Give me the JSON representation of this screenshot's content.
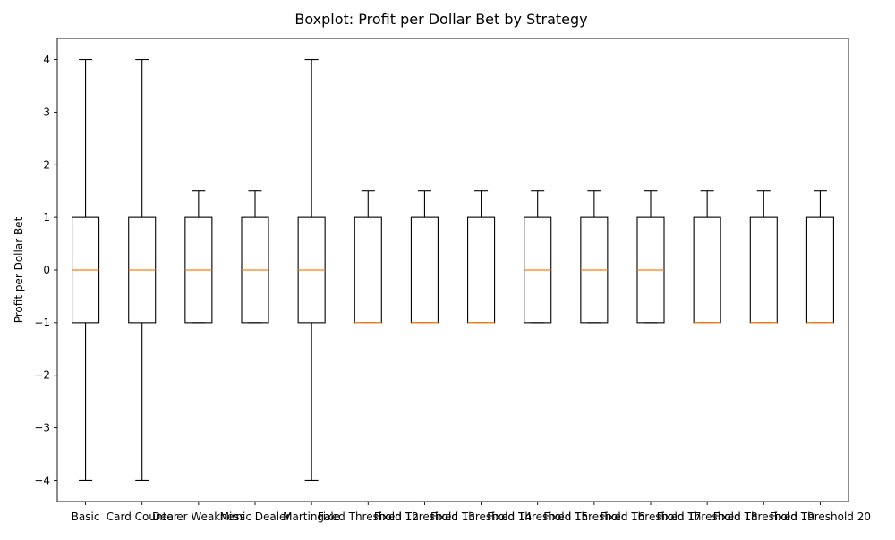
{
  "chart_data": {
    "type": "boxplot",
    "title": "Boxplot: Profit per Dollar Bet by Strategy",
    "xlabel": "",
    "ylabel": "Profit per Dollar Bet",
    "ylim": [
      -4.4,
      4.4
    ],
    "yticks": [
      -4,
      -3,
      -2,
      -1,
      0,
      1,
      2,
      3,
      4
    ],
    "ytick_labels": [
      "−4",
      "−3",
      "−2",
      "−1",
      "0",
      "1",
      "2",
      "3",
      "4"
    ],
    "grid": false,
    "categories": [
      "Basic",
      "Card Counter",
      "Dealer Weakness",
      "Mimic Dealer",
      "Martingale",
      "Fixed Threshold 12",
      "Fixed Threshold 13",
      "Fixed Threshold 14",
      "Fixed Threshold 15",
      "Fixed Threshold 16",
      "Fixed Threshold 17",
      "Fixed Threshold 18",
      "Fixed Threshold 19",
      "Fixed Threshold 20"
    ],
    "boxes": [
      {
        "whisker_low": -4,
        "q1": -1,
        "median": 0,
        "q3": 1,
        "whisker_high": 4
      },
      {
        "whisker_low": -4,
        "q1": -1,
        "median": 0,
        "q3": 1,
        "whisker_high": 4
      },
      {
        "whisker_low": -1,
        "q1": -1,
        "median": 0,
        "q3": 1,
        "whisker_high": 1.5
      },
      {
        "whisker_low": -1,
        "q1": -1,
        "median": 0,
        "q3": 1,
        "whisker_high": 1.5
      },
      {
        "whisker_low": -4,
        "q1": -1,
        "median": 0,
        "q3": 1,
        "whisker_high": 4
      },
      {
        "whisker_low": -1,
        "q1": -1,
        "median": -1,
        "q3": 1,
        "whisker_high": 1.5
      },
      {
        "whisker_low": -1,
        "q1": -1,
        "median": -1,
        "q3": 1,
        "whisker_high": 1.5
      },
      {
        "whisker_low": -1,
        "q1": -1,
        "median": -1,
        "q3": 1,
        "whisker_high": 1.5
      },
      {
        "whisker_low": -1,
        "q1": -1,
        "median": 0,
        "q3": 1,
        "whisker_high": 1.5
      },
      {
        "whisker_low": -1,
        "q1": -1,
        "median": 0,
        "q3": 1,
        "whisker_high": 1.5
      },
      {
        "whisker_low": -1,
        "q1": -1,
        "median": 0,
        "q3": 1,
        "whisker_high": 1.5
      },
      {
        "whisker_low": -1,
        "q1": -1,
        "median": -1,
        "q3": 1,
        "whisker_high": 1.5
      },
      {
        "whisker_low": -1,
        "q1": -1,
        "median": -1,
        "q3": 1,
        "whisker_high": 1.5
      },
      {
        "whisker_low": -1,
        "q1": -1,
        "median": -1,
        "q3": 1,
        "whisker_high": 1.5
      }
    ],
    "colors": {
      "box": "#000000",
      "median": "#ff7f0e",
      "axes": "#000000"
    }
  }
}
